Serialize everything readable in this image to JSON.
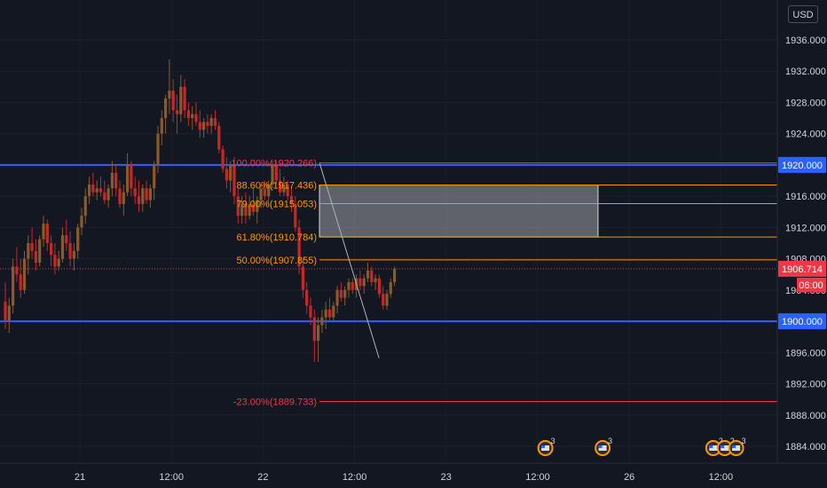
{
  "currency": "USD",
  "chart_data": {
    "type": "candlestick",
    "y_axis": {
      "range": [
        1882,
        1940
      ],
      "ticks": [
        "1936.000",
        "1932.000",
        "1928.000",
        "1924.000",
        "1920.000",
        "1916.000",
        "1912.000",
        "1908.000",
        "1904.000",
        "1900.000",
        "1896.000",
        "1892.000",
        "1888.000",
        "1884.000"
      ],
      "tick_values": [
        1936,
        1932,
        1928,
        1924,
        1920,
        1916,
        1912,
        1908,
        1904,
        1900,
        1896,
        1892,
        1888,
        1884
      ]
    },
    "x_axis": {
      "ticks": [
        "21",
        "12:00",
        "22",
        "12:00",
        "23",
        "12:00",
        "26",
        "12:00"
      ],
      "tick_hours": [
        0,
        12,
        24,
        36,
        48,
        60,
        72,
        84
      ]
    },
    "current_price": {
      "value": "1906.714",
      "countdown": "06:00"
    },
    "horizontal_lines": [
      {
        "label": "1920.000",
        "value": 1920.0,
        "color": "#2962ff"
      },
      {
        "label": "1900.000",
        "value": 1900.0,
        "color": "#2962ff"
      }
    ],
    "fibonacci": {
      "color_upper": "#ff9800",
      "color_lower": "#f23645",
      "levels": [
        {
          "text": "100.00%(1920.266)",
          "value": 1920.266,
          "tone": "lower"
        },
        {
          "text": "88.60%(1917.436)",
          "value": 1917.436,
          "tone": "upper"
        },
        {
          "text": "79.00%(1915.053)",
          "value": 1915.053,
          "tone": "upper"
        },
        {
          "text": "61.80%(1910.784)",
          "value": 1910.784,
          "tone": "upper"
        },
        {
          "text": "50.00%(1907.855)",
          "value": 1907.855,
          "tone": "upper"
        },
        {
          "text": "-23.00%(1889.733)",
          "value": 1889.733,
          "tone": "lower"
        }
      ]
    },
    "zone_box": {
      "top": 1917.436,
      "bottom": 1910.784
    },
    "candles": [
      {
        "o": 1902.5,
        "h": 1905.0,
        "l": 1899.0,
        "c": 1900.0
      },
      {
        "o": 1900.0,
        "h": 1903.0,
        "l": 1898.5,
        "c": 1902.0
      },
      {
        "o": 1902.0,
        "h": 1908.0,
        "l": 1901.0,
        "c": 1907.0
      },
      {
        "o": 1907.0,
        "h": 1909.5,
        "l": 1905.0,
        "c": 1906.0
      },
      {
        "o": 1906.0,
        "h": 1908.0,
        "l": 1903.0,
        "c": 1904.0
      },
      {
        "o": 1904.0,
        "h": 1909.0,
        "l": 1903.5,
        "c": 1908.0
      },
      {
        "o": 1908.0,
        "h": 1911.0,
        "l": 1906.0,
        "c": 1910.0
      },
      {
        "o": 1910.0,
        "h": 1912.0,
        "l": 1908.0,
        "c": 1909.0
      },
      {
        "o": 1909.0,
        "h": 1910.5,
        "l": 1906.5,
        "c": 1907.5
      },
      {
        "o": 1907.5,
        "h": 1911.0,
        "l": 1907.0,
        "c": 1910.5
      },
      {
        "o": 1910.5,
        "h": 1913.5,
        "l": 1909.5,
        "c": 1912.5
      },
      {
        "o": 1912.5,
        "h": 1913.0,
        "l": 1909.0,
        "c": 1910.0
      },
      {
        "o": 1910.0,
        "h": 1911.0,
        "l": 1907.0,
        "c": 1908.5
      },
      {
        "o": 1908.5,
        "h": 1910.0,
        "l": 1906.0,
        "c": 1907.0
      },
      {
        "o": 1907.0,
        "h": 1909.0,
        "l": 1906.5,
        "c": 1908.0
      },
      {
        "o": 1908.0,
        "h": 1912.0,
        "l": 1907.5,
        "c": 1911.0
      },
      {
        "o": 1911.0,
        "h": 1913.0,
        "l": 1909.0,
        "c": 1910.0
      },
      {
        "o": 1910.0,
        "h": 1911.5,
        "l": 1907.0,
        "c": 1908.0
      },
      {
        "o": 1908.0,
        "h": 1910.0,
        "l": 1906.5,
        "c": 1909.0
      },
      {
        "o": 1909.0,
        "h": 1912.5,
        "l": 1908.0,
        "c": 1912.0
      },
      {
        "o": 1912.0,
        "h": 1914.5,
        "l": 1911.0,
        "c": 1913.5
      },
      {
        "o": 1913.5,
        "h": 1917.0,
        "l": 1912.5,
        "c": 1916.0
      },
      {
        "o": 1916.0,
        "h": 1918.5,
        "l": 1915.0,
        "c": 1917.5
      },
      {
        "o": 1917.5,
        "h": 1919.0,
        "l": 1916.0,
        "c": 1916.5
      },
      {
        "o": 1916.5,
        "h": 1918.0,
        "l": 1915.5,
        "c": 1917.0
      },
      {
        "o": 1917.0,
        "h": 1918.5,
        "l": 1916.0,
        "c": 1916.5
      },
      {
        "o": 1916.5,
        "h": 1918.0,
        "l": 1915.0,
        "c": 1915.5
      },
      {
        "o": 1915.5,
        "h": 1917.5,
        "l": 1914.5,
        "c": 1917.0
      },
      {
        "o": 1917.0,
        "h": 1920.5,
        "l": 1916.0,
        "c": 1919.0
      },
      {
        "o": 1919.0,
        "h": 1920.0,
        "l": 1916.0,
        "c": 1917.0
      },
      {
        "o": 1917.0,
        "h": 1918.0,
        "l": 1914.5,
        "c": 1915.0
      },
      {
        "o": 1915.0,
        "h": 1917.5,
        "l": 1913.5,
        "c": 1916.5
      },
      {
        "o": 1916.5,
        "h": 1921.5,
        "l": 1916.0,
        "c": 1920.0
      },
      {
        "o": 1920.0,
        "h": 1920.5,
        "l": 1916.0,
        "c": 1917.0
      },
      {
        "o": 1917.0,
        "h": 1918.5,
        "l": 1915.0,
        "c": 1916.0
      },
      {
        "o": 1916.0,
        "h": 1918.0,
        "l": 1914.0,
        "c": 1915.0
      },
      {
        "o": 1915.0,
        "h": 1917.5,
        "l": 1914.0,
        "c": 1917.0
      },
      {
        "o": 1917.0,
        "h": 1918.0,
        "l": 1915.0,
        "c": 1915.5
      },
      {
        "o": 1915.5,
        "h": 1917.5,
        "l": 1914.5,
        "c": 1917.0
      },
      {
        "o": 1917.0,
        "h": 1920.5,
        "l": 1915.5,
        "c": 1920.0
      },
      {
        "o": 1920.0,
        "h": 1925.0,
        "l": 1919.0,
        "c": 1924.0
      },
      {
        "o": 1924.0,
        "h": 1927.0,
        "l": 1922.5,
        "c": 1926.0
      },
      {
        "o": 1926.0,
        "h": 1929.0,
        "l": 1924.0,
        "c": 1928.5
      },
      {
        "o": 1928.5,
        "h": 1933.5,
        "l": 1926.5,
        "c": 1929.5
      },
      {
        "o": 1929.5,
        "h": 1931.0,
        "l": 1925.5,
        "c": 1927.0
      },
      {
        "o": 1927.0,
        "h": 1929.0,
        "l": 1924.0,
        "c": 1926.5
      },
      {
        "o": 1926.5,
        "h": 1931.5,
        "l": 1925.5,
        "c": 1930.0
      },
      {
        "o": 1930.0,
        "h": 1931.0,
        "l": 1926.0,
        "c": 1927.0
      },
      {
        "o": 1927.0,
        "h": 1928.0,
        "l": 1925.0,
        "c": 1926.0
      },
      {
        "o": 1926.0,
        "h": 1927.5,
        "l": 1924.5,
        "c": 1926.5
      },
      {
        "o": 1926.5,
        "h": 1928.0,
        "l": 1925.0,
        "c": 1925.5
      },
      {
        "o": 1925.5,
        "h": 1927.0,
        "l": 1923.5,
        "c": 1924.5
      },
      {
        "o": 1924.5,
        "h": 1926.0,
        "l": 1923.5,
        "c": 1925.5
      },
      {
        "o": 1925.5,
        "h": 1926.5,
        "l": 1924.0,
        "c": 1925.0
      },
      {
        "o": 1925.0,
        "h": 1926.5,
        "l": 1924.0,
        "c": 1926.0
      },
      {
        "o": 1926.0,
        "h": 1927.0,
        "l": 1924.5,
        "c": 1925.0
      },
      {
        "o": 1925.0,
        "h": 1925.5,
        "l": 1921.5,
        "c": 1922.0
      },
      {
        "o": 1922.0,
        "h": 1922.5,
        "l": 1919.0,
        "c": 1919.5
      },
      {
        "o": 1919.5,
        "h": 1921.0,
        "l": 1917.0,
        "c": 1918.0
      },
      {
        "o": 1918.0,
        "h": 1920.5,
        "l": 1916.5,
        "c": 1920.0
      },
      {
        "o": 1920.0,
        "h": 1921.0,
        "l": 1915.0,
        "c": 1916.0
      },
      {
        "o": 1916.0,
        "h": 1917.0,
        "l": 1912.5,
        "c": 1913.5
      },
      {
        "o": 1913.5,
        "h": 1916.0,
        "l": 1912.5,
        "c": 1915.0
      },
      {
        "o": 1915.0,
        "h": 1916.5,
        "l": 1912.5,
        "c": 1913.5
      },
      {
        "o": 1913.5,
        "h": 1916.0,
        "l": 1913.0,
        "c": 1915.0
      },
      {
        "o": 1915.0,
        "h": 1917.0,
        "l": 1913.5,
        "c": 1914.0
      },
      {
        "o": 1914.0,
        "h": 1916.0,
        "l": 1912.5,
        "c": 1915.5
      },
      {
        "o": 1915.5,
        "h": 1917.5,
        "l": 1914.5,
        "c": 1917.0
      },
      {
        "o": 1917.0,
        "h": 1918.0,
        "l": 1915.5,
        "c": 1916.0
      },
      {
        "o": 1916.0,
        "h": 1918.0,
        "l": 1915.0,
        "c": 1917.5
      },
      {
        "o": 1917.5,
        "h": 1920.5,
        "l": 1917.0,
        "c": 1920.0
      },
      {
        "o": 1920.0,
        "h": 1920.5,
        "l": 1917.5,
        "c": 1918.0
      },
      {
        "o": 1918.0,
        "h": 1919.5,
        "l": 1916.0,
        "c": 1916.5
      },
      {
        "o": 1916.5,
        "h": 1918.5,
        "l": 1916.0,
        "c": 1917.5
      },
      {
        "o": 1917.5,
        "h": 1918.0,
        "l": 1915.5,
        "c": 1916.0
      },
      {
        "o": 1916.0,
        "h": 1917.0,
        "l": 1914.0,
        "c": 1915.0
      },
      {
        "o": 1915.0,
        "h": 1916.0,
        "l": 1911.5,
        "c": 1912.0
      },
      {
        "o": 1912.0,
        "h": 1913.0,
        "l": 1906.0,
        "c": 1907.0
      },
      {
        "o": 1907.0,
        "h": 1908.0,
        "l": 1903.0,
        "c": 1904.0
      },
      {
        "o": 1904.0,
        "h": 1905.0,
        "l": 1901.0,
        "c": 1902.0
      },
      {
        "o": 1902.0,
        "h": 1903.0,
        "l": 1899.5,
        "c": 1900.5
      },
      {
        "o": 1900.5,
        "h": 1901.5,
        "l": 1894.8,
        "c": 1897.5
      },
      {
        "o": 1897.5,
        "h": 1900.5,
        "l": 1894.8,
        "c": 1899.5
      },
      {
        "o": 1899.5,
        "h": 1901.5,
        "l": 1898.5,
        "c": 1900.5
      },
      {
        "o": 1900.5,
        "h": 1902.5,
        "l": 1899.0,
        "c": 1901.5
      },
      {
        "o": 1901.5,
        "h": 1903.0,
        "l": 1900.0,
        "c": 1900.5
      },
      {
        "o": 1900.5,
        "h": 1902.5,
        "l": 1900.0,
        "c": 1902.0
      },
      {
        "o": 1902.0,
        "h": 1904.5,
        "l": 1901.0,
        "c": 1904.0
      },
      {
        "o": 1904.0,
        "h": 1905.0,
        "l": 1902.5,
        "c": 1903.0
      },
      {
        "o": 1903.0,
        "h": 1904.5,
        "l": 1902.0,
        "c": 1904.0
      },
      {
        "o": 1904.0,
        "h": 1905.5,
        "l": 1903.0,
        "c": 1905.0
      },
      {
        "o": 1905.0,
        "h": 1905.5,
        "l": 1903.5,
        "c": 1904.0
      },
      {
        "o": 1904.0,
        "h": 1906.0,
        "l": 1903.0,
        "c": 1905.5
      },
      {
        "o": 1905.5,
        "h": 1906.5,
        "l": 1904.0,
        "c": 1904.5
      },
      {
        "o": 1904.5,
        "h": 1906.0,
        "l": 1903.5,
        "c": 1905.5
      },
      {
        "o": 1905.5,
        "h": 1907.5,
        "l": 1905.0,
        "c": 1906.5
      },
      {
        "o": 1906.5,
        "h": 1907.0,
        "l": 1904.5,
        "c": 1905.0
      },
      {
        "o": 1905.0,
        "h": 1906.0,
        "l": 1904.0,
        "c": 1905.5
      },
      {
        "o": 1905.5,
        "h": 1906.0,
        "l": 1903.0,
        "c": 1903.5
      },
      {
        "o": 1903.5,
        "h": 1904.5,
        "l": 1901.5,
        "c": 1902.0
      },
      {
        "o": 1902.0,
        "h": 1904.0,
        "l": 1901.5,
        "c": 1903.5
      },
      {
        "o": 1903.5,
        "h": 1905.5,
        "l": 1903.0,
        "c": 1905.0
      },
      {
        "o": 1905.0,
        "h": 1907.0,
        "l": 1904.5,
        "c": 1906.714
      }
    ],
    "events": [
      {
        "hour": 61,
        "badge": "3"
      },
      {
        "hour": 68.5,
        "badge": "3"
      },
      {
        "hour": 83,
        "badge": "2"
      },
      {
        "hour": 84.5,
        "badge": "2"
      },
      {
        "hour": 86,
        "badge": "3"
      }
    ],
    "colors": {
      "up": "#089981",
      "down": "#f23645",
      "candle_body": "#c62828",
      "candle_alt": "#8a5a2b",
      "background": "#131722",
      "axis_text": "#d1d4dc",
      "price_tag": "#f23645"
    }
  }
}
